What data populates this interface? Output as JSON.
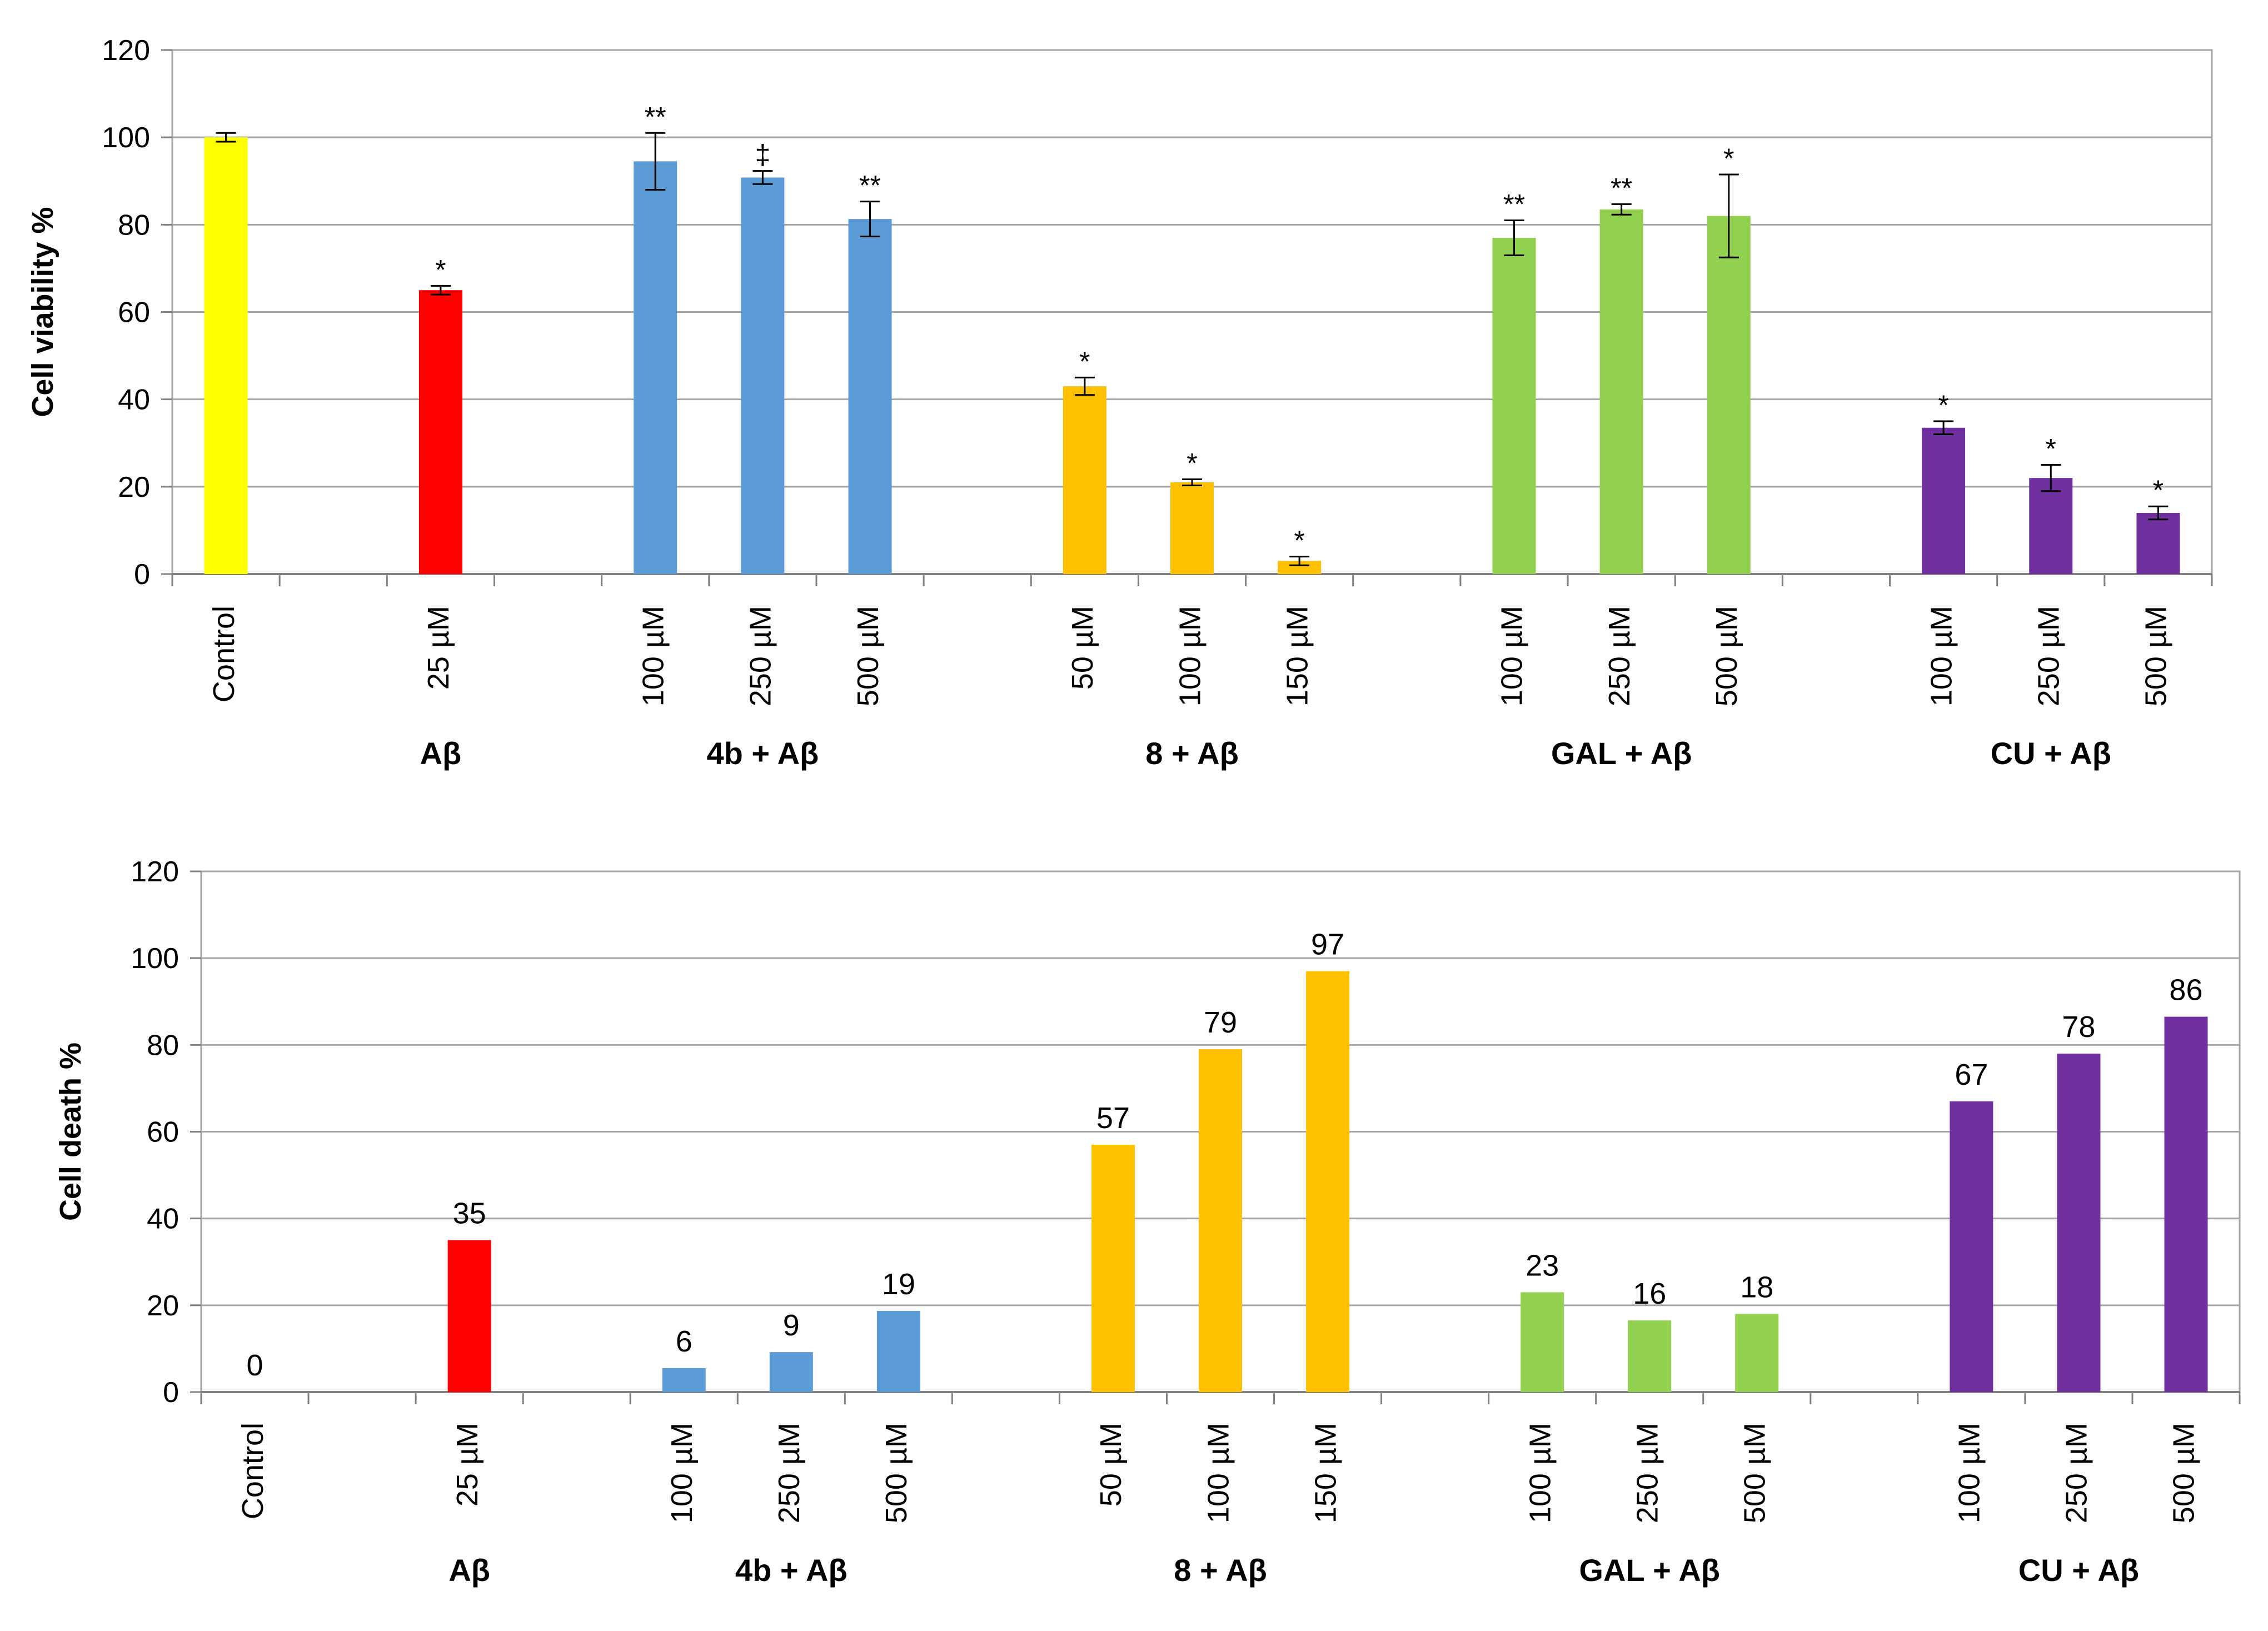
{
  "chart_data": [
    {
      "type": "bar",
      "id": "viability",
      "ylabel": "Cell viability %",
      "ylim": [
        0,
        120
      ],
      "yticks": [
        "0",
        "20",
        "40",
        "60",
        "80",
        "100",
        "120"
      ],
      "grid": true,
      "slots": [
        {
          "label": "Control",
          "value": 100,
          "err": 1,
          "sig": "",
          "color": "#FFFF00"
        },
        {
          "label": "",
          "value": null
        },
        {
          "label": "25 µM",
          "value": 65,
          "err": 1,
          "sig": "*",
          "color": "#FF0000"
        },
        {
          "label": "",
          "value": null
        },
        {
          "label": "100 µM",
          "value": 94.5,
          "err": 6.5,
          "sig": "**",
          "color": "#5B9BD5"
        },
        {
          "label": "250 µM",
          "value": 90.8,
          "err": 1.5,
          "sig": "‡",
          "color": "#5B9BD5"
        },
        {
          "label": "500 µM",
          "value": 81.3,
          "err": 4,
          "sig": "**",
          "color": "#5B9BD5"
        },
        {
          "label": "",
          "value": null
        },
        {
          "label": "50 µM",
          "value": 43,
          "err": 2,
          "sig": "*",
          "color": "#FFC000"
        },
        {
          "label": "100 µM",
          "value": 21,
          "err": 0.7,
          "sig": "*",
          "color": "#FFC000"
        },
        {
          "label": "150 µM",
          "value": 3,
          "err": 1,
          "sig": "*",
          "color": "#FFC000"
        },
        {
          "label": "",
          "value": null
        },
        {
          "label": "100 µM",
          "value": 77,
          "err": 4,
          "sig": "**",
          "color": "#92D050"
        },
        {
          "label": "250 µM",
          "value": 83.5,
          "err": 1.2,
          "sig": "**",
          "color": "#92D050"
        },
        {
          "label": "500 µM",
          "value": 82,
          "err": 9.5,
          "sig": "*",
          "color": "#92D050"
        },
        {
          "label": "",
          "value": null
        },
        {
          "label": "100 µM",
          "value": 33.5,
          "err": 1.5,
          "sig": "*",
          "color": "#7030A0"
        },
        {
          "label": "250 µM",
          "value": 22,
          "err": 3,
          "sig": "*",
          "color": "#7030A0"
        },
        {
          "label": "500 µM",
          "value": 14,
          "err": 1.5,
          "sig": "*",
          "color": "#7030A0"
        }
      ],
      "groups": [
        {
          "name": "Aβ",
          "slot": 2
        },
        {
          "name": "4b + Aβ",
          "slot": 5
        },
        {
          "name": "8 + Aβ",
          "slot": 9
        },
        {
          "name": "GAL + Aβ",
          "slot": 13
        },
        {
          "name": "CU + Aβ",
          "slot": 17
        }
      ]
    },
    {
      "type": "bar",
      "id": "death",
      "ylabel": "Cell death %",
      "ylim": [
        0,
        120
      ],
      "yticks": [
        "0",
        "20",
        "40",
        "60",
        "80",
        "100",
        "120"
      ],
      "grid": true,
      "slots": [
        {
          "label": "Control",
          "value": 0,
          "dlabel": "0",
          "color": "#FFFF00"
        },
        {
          "label": "",
          "value": null
        },
        {
          "label": "25 µM",
          "value": 35,
          "dlabel": "35",
          "color": "#FF0000"
        },
        {
          "label": "",
          "value": null
        },
        {
          "label": "100 µM",
          "value": 5.5,
          "dlabel": "6",
          "color": "#5B9BD5"
        },
        {
          "label": "250 µM",
          "value": 9.2,
          "dlabel": "9",
          "color": "#5B9BD5"
        },
        {
          "label": "500 µM",
          "value": 18.7,
          "dlabel": "19",
          "color": "#5B9BD5"
        },
        {
          "label": "",
          "value": null
        },
        {
          "label": "50 µM",
          "value": 57,
          "dlabel": "57",
          "color": "#FFC000"
        },
        {
          "label": "100 µM",
          "value": 79,
          "dlabel": "79",
          "color": "#FFC000"
        },
        {
          "label": "150 µM",
          "value": 97,
          "dlabel": "97",
          "color": "#FFC000"
        },
        {
          "label": "",
          "value": null
        },
        {
          "label": "100 µM",
          "value": 23,
          "dlabel": "23",
          "color": "#92D050"
        },
        {
          "label": "250 µM",
          "value": 16.5,
          "dlabel": "16",
          "color": "#92D050"
        },
        {
          "label": "500 µM",
          "value": 18,
          "dlabel": "18",
          "color": "#92D050"
        },
        {
          "label": "",
          "value": null
        },
        {
          "label": "100 µM",
          "value": 67,
          "dlabel": "67",
          "color": "#7030A0"
        },
        {
          "label": "250 µM",
          "value": 78,
          "dlabel": "78",
          "color": "#7030A0"
        },
        {
          "label": "500 µM",
          "value": 86.5,
          "dlabel": "86",
          "color": "#7030A0"
        }
      ],
      "groups": [
        {
          "name": "Aβ",
          "slot": 2
        },
        {
          "name": "4b + Aβ",
          "slot": 5
        },
        {
          "name": "8 + Aβ",
          "slot": 9
        },
        {
          "name": "GAL + Aβ",
          "slot": 13
        },
        {
          "name": "CU + Aβ",
          "slot": 17
        }
      ]
    }
  ]
}
